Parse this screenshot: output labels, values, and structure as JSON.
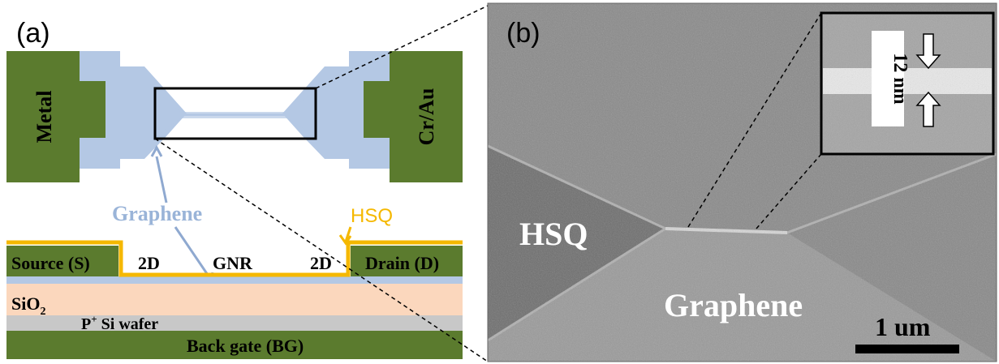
{
  "panel_a": {
    "tag": "(a)",
    "top_view": {
      "left_pad_label": "Metal",
      "right_pad_label": "Cr/Au"
    },
    "graphene_label": "Graphene",
    "hsq_label": "HSQ",
    "cross_section": {
      "source_label": "Source (S)",
      "drain_label": "Drain (D)",
      "left_2d_label": "2D",
      "gnr_label": "GNR",
      "right_2d_label": "2D",
      "sio2_label": "SiO",
      "sio2_subscript": "2",
      "wafer_label": "P",
      "wafer_superscript": "+",
      "wafer_label_rest": " Si wafer",
      "back_gate_label": "Back gate (BG)"
    }
  },
  "panel_b": {
    "tag": "(b)",
    "hsq_label": "HSQ",
    "graphene_label": "Graphene",
    "scale_bar_label": "1 um",
    "inset_label": "12 nm"
  },
  "colors": {
    "metal_green": "#5b7b2e",
    "graphene_blue": "#b4c8e4",
    "hsq_yellow": "#f5b800",
    "sio2_peach": "#fbd7bd",
    "wafer_gray": "#c8c8c8",
    "outline_black": "#000000"
  }
}
